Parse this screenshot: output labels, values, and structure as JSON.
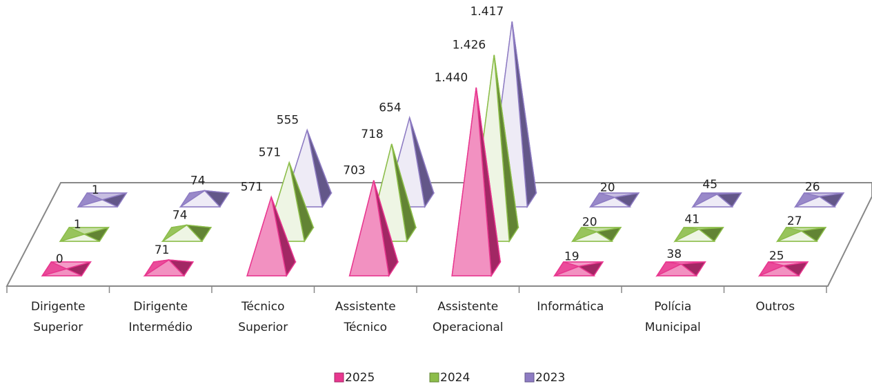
{
  "chart_data": {
    "type": "pyramid3d",
    "categories": [
      "Dirigente Superior",
      "Dirigente Intermédio",
      "Técnico Superior",
      "Assistente Técnico",
      "Assistente Operacional",
      "Informática",
      "Polícia Municipal",
      "Outros"
    ],
    "series": [
      {
        "name": "2025",
        "color": "#e8378f",
        "values": [
          0,
          71,
          571,
          703,
          1440,
          19,
          38,
          25
        ],
        "value_labels": [
          "0",
          "71",
          "571",
          "703",
          "1.440",
          "19",
          "38",
          "25"
        ]
      },
      {
        "name": "2024",
        "color": "#8cbd4a",
        "values": [
          1,
          74,
          571,
          718,
          1426,
          20,
          41,
          27
        ],
        "value_labels": [
          "1",
          "74",
          "571",
          "718",
          "1.426",
          "20",
          "41",
          "27"
        ]
      },
      {
        "name": "2023",
        "color": "#8e7cc3",
        "values": [
          1,
          74,
          555,
          654,
          1417,
          20,
          45,
          26
        ],
        "value_labels": [
          "1",
          "74",
          "555",
          "654",
          "1.417",
          "20",
          "45",
          "26"
        ]
      }
    ],
    "legend": "bottom"
  }
}
